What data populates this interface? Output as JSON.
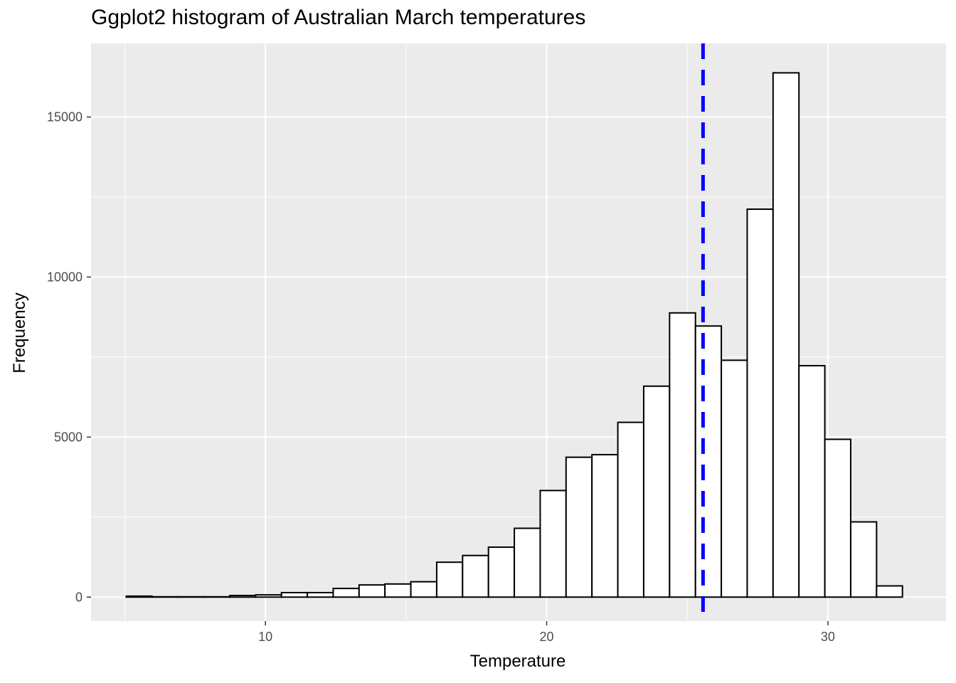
{
  "chart_data": {
    "type": "bar",
    "title": "Ggplot2 histogram of Australian March temperatures",
    "xlabel": "Temperature",
    "ylabel": "Frequency",
    "xlim": [
      3.8,
      34.2
    ],
    "ylim": [
      -750,
      17300
    ],
    "xticks": [
      10,
      20,
      30
    ],
    "yticks": [
      0,
      5000,
      10000,
      15000
    ],
    "bin_width": 0.92,
    "bins": [
      {
        "x0": 5.05,
        "x1": 5.97,
        "count": 30
      },
      {
        "x0": 5.97,
        "x1": 6.89,
        "count": 10
      },
      {
        "x0": 6.89,
        "x1": 7.81,
        "count": 10
      },
      {
        "x0": 7.81,
        "x1": 8.73,
        "count": 10
      },
      {
        "x0": 8.73,
        "x1": 9.65,
        "count": 50
      },
      {
        "x0": 9.65,
        "x1": 10.57,
        "count": 70
      },
      {
        "x0": 10.57,
        "x1": 11.49,
        "count": 140
      },
      {
        "x0": 11.49,
        "x1": 12.41,
        "count": 140
      },
      {
        "x0": 12.41,
        "x1": 13.33,
        "count": 270
      },
      {
        "x0": 13.33,
        "x1": 14.25,
        "count": 380
      },
      {
        "x0": 14.25,
        "x1": 15.17,
        "count": 410
      },
      {
        "x0": 15.17,
        "x1": 16.09,
        "count": 480
      },
      {
        "x0": 16.09,
        "x1": 17.01,
        "count": 1090
      },
      {
        "x0": 17.01,
        "x1": 17.93,
        "count": 1300
      },
      {
        "x0": 17.93,
        "x1": 18.85,
        "count": 1560
      },
      {
        "x0": 18.85,
        "x1": 19.77,
        "count": 2150
      },
      {
        "x0": 19.77,
        "x1": 20.69,
        "count": 3330
      },
      {
        "x0": 20.69,
        "x1": 21.61,
        "count": 4370
      },
      {
        "x0": 21.61,
        "x1": 22.53,
        "count": 4450
      },
      {
        "x0": 22.53,
        "x1": 23.45,
        "count": 5460
      },
      {
        "x0": 23.45,
        "x1": 24.37,
        "count": 6590
      },
      {
        "x0": 24.37,
        "x1": 25.29,
        "count": 8880
      },
      {
        "x0": 25.29,
        "x1": 26.21,
        "count": 8470
      },
      {
        "x0": 26.21,
        "x1": 27.13,
        "count": 7400
      },
      {
        "x0": 27.13,
        "x1": 28.05,
        "count": 12120
      },
      {
        "x0": 28.05,
        "x1": 28.97,
        "count": 16380
      },
      {
        "x0": 28.97,
        "x1": 29.89,
        "count": 7230
      },
      {
        "x0": 29.89,
        "x1": 30.81,
        "count": 4930
      },
      {
        "x0": 30.81,
        "x1": 31.73,
        "count": 2350
      },
      {
        "x0": 31.73,
        "x1": 32.65,
        "count": 350
      }
    ],
    "mean_line": {
      "x": 25.56,
      "color": "#0000ff",
      "style": "dashed"
    },
    "colors": {
      "panel_background": "#ebebeb",
      "gridline": "#ffffff",
      "bar_fill": "#ffffff",
      "bar_outline": "#000000",
      "tick_text": "#4d4d4d"
    },
    "grid": true,
    "legend": "none"
  }
}
